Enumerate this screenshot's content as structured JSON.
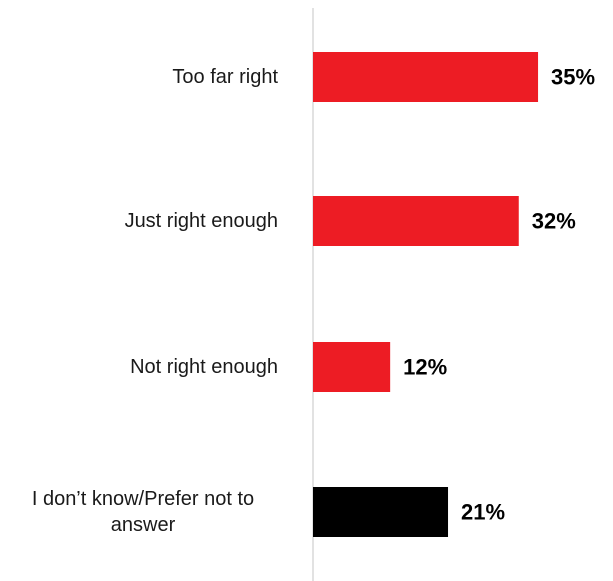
{
  "chart_data": {
    "type": "bar",
    "orientation": "horizontal",
    "title": "",
    "xlabel": "",
    "ylabel": "",
    "categories": [
      "Too far right",
      "Just right enough",
      "Not right enough",
      "I don’t know/Prefer not to answer"
    ],
    "category_lines": [
      [
        "Too far right"
      ],
      [
        "Just right enough"
      ],
      [
        "Not right enough"
      ],
      [
        "I don’t know/Prefer not to",
        "answer"
      ]
    ],
    "values": [
      35,
      32,
      12,
      21
    ],
    "value_labels": [
      "35%",
      "32%",
      "12%",
      "21%"
    ],
    "bar_colors": [
      "#ed1c24",
      "#ed1c24",
      "#ed1c24",
      "#000000"
    ],
    "xlim": [
      0,
      35
    ],
    "grid": false,
    "legend": "none",
    "axis_color": "#d9d9d9"
  }
}
